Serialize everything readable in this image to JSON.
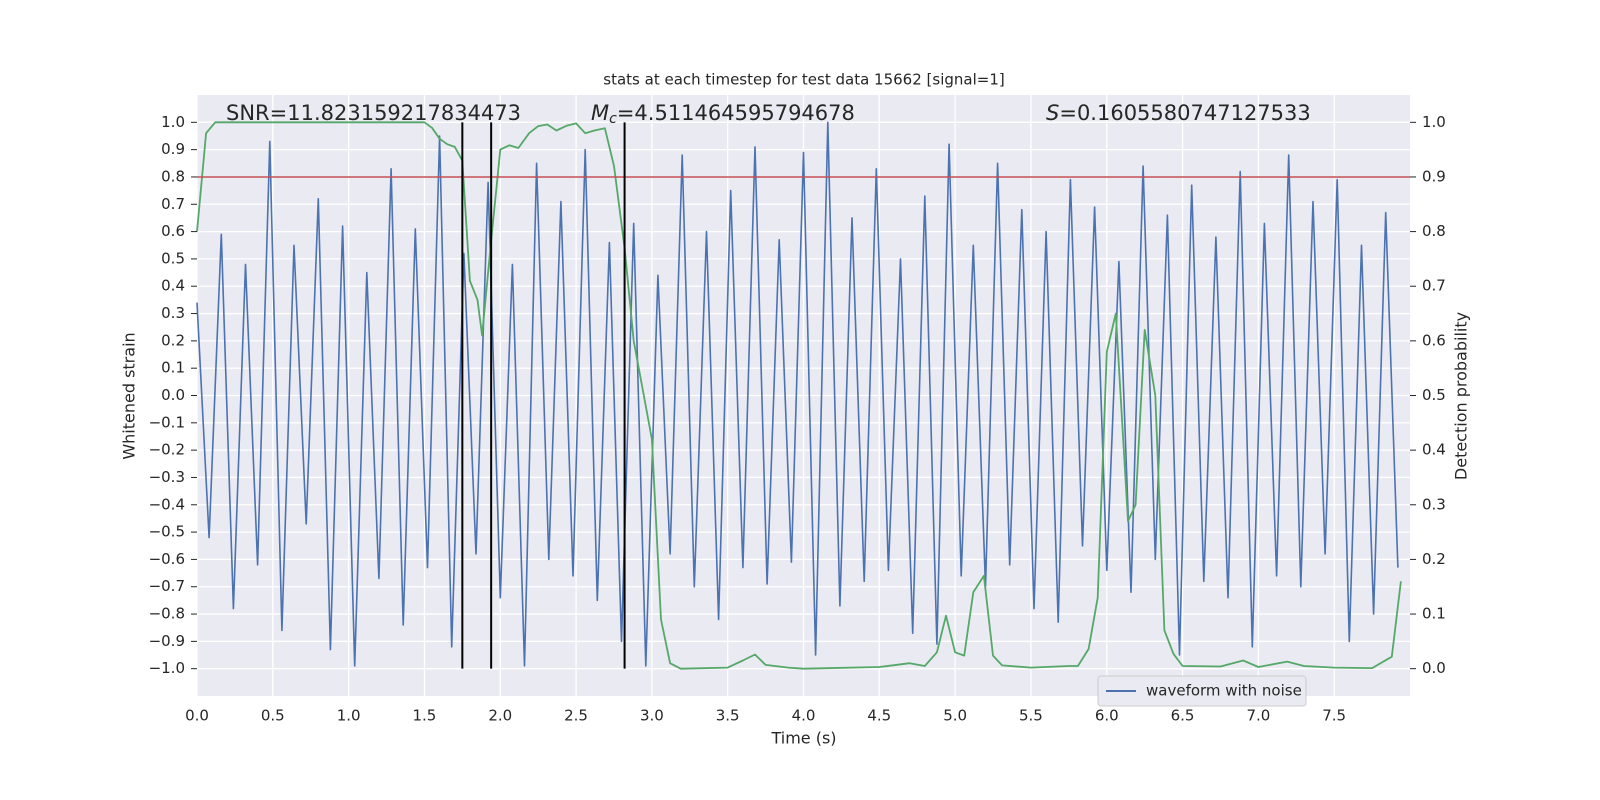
{
  "chart_data": {
    "type": "line",
    "title": "stats at each timestep for test data 15662 [signal=1]",
    "xlabel": "Time (s)",
    "ylabel": "Whitened strain",
    "y2label": "Detection probability",
    "annotations": [
      {
        "text": "SNR=11.823159217834473"
      },
      {
        "symbol": "M",
        "subscript": "c",
        "text": "=4.511464595794678"
      },
      {
        "symbol": "S",
        "text": "=0.1605580747127533"
      }
    ],
    "xlim": [
      0,
      8
    ],
    "ylim": [
      -1.1,
      1.1
    ],
    "y2lim": [
      -0.05,
      1.05
    ],
    "xticks": [
      {
        "value": 0,
        "label": "0.0"
      },
      {
        "value": 0.5,
        "label": "0.5"
      },
      {
        "value": 1,
        "label": "1.0"
      },
      {
        "value": 1.5,
        "label": "1.5"
      },
      {
        "value": 2,
        "label": "2.0"
      },
      {
        "value": 2.5,
        "label": "2.5"
      },
      {
        "value": 3,
        "label": "3.0"
      },
      {
        "value": 3.5,
        "label": "3.5"
      },
      {
        "value": 4,
        "label": "4.0"
      },
      {
        "value": 4.5,
        "label": "4.5"
      },
      {
        "value": 5,
        "label": "5.0"
      },
      {
        "value": 5.5,
        "label": "5.5"
      },
      {
        "value": 6,
        "label": "6.0"
      },
      {
        "value": 6.5,
        "label": "6.5"
      },
      {
        "value": 7,
        "label": "7.0"
      },
      {
        "value": 7.5,
        "label": "7.5"
      }
    ],
    "yticks": [
      {
        "value": -1,
        "label": "−1.0"
      },
      {
        "value": -0.9,
        "label": "−0.9"
      },
      {
        "value": -0.8,
        "label": "−0.8"
      },
      {
        "value": -0.7,
        "label": "−0.7"
      },
      {
        "value": -0.6,
        "label": "−0.6"
      },
      {
        "value": -0.5,
        "label": "−0.5"
      },
      {
        "value": -0.4,
        "label": "−0.4"
      },
      {
        "value": -0.3,
        "label": "−0.3"
      },
      {
        "value": -0.2,
        "label": "−0.2"
      },
      {
        "value": -0.1,
        "label": "−0.1"
      },
      {
        "value": 0,
        "label": "0.0"
      },
      {
        "value": 0.1,
        "label": "0.1"
      },
      {
        "value": 0.2,
        "label": "0.2"
      },
      {
        "value": 0.3,
        "label": "0.3"
      },
      {
        "value": 0.4,
        "label": "0.4"
      },
      {
        "value": 0.5,
        "label": "0.5"
      },
      {
        "value": 0.6,
        "label": "0.6"
      },
      {
        "value": 0.7,
        "label": "0.7"
      },
      {
        "value": 0.8,
        "label": "0.8"
      },
      {
        "value": 0.9,
        "label": "0.9"
      },
      {
        "value": 1,
        "label": "1.0"
      }
    ],
    "y2ticks": [
      {
        "value": 0,
        "label": "0.0"
      },
      {
        "value": 0.1,
        "label": "0.1"
      },
      {
        "value": 0.2,
        "label": "0.2"
      },
      {
        "value": 0.3,
        "label": "0.3"
      },
      {
        "value": 0.4,
        "label": "0.4"
      },
      {
        "value": 0.5,
        "label": "0.5"
      },
      {
        "value": 0.6,
        "label": "0.6"
      },
      {
        "value": 0.7,
        "label": "0.7"
      },
      {
        "value": 0.8,
        "label": "0.8"
      },
      {
        "value": 0.9,
        "label": "0.9"
      },
      {
        "value": 1,
        "label": "1.0"
      }
    ],
    "grid": true,
    "legend": "lower right",
    "series": [
      {
        "name": "waveform with noise",
        "color": "#4c72b0",
        "axis": "y",
        "x": [
          0.0,
          0.08,
          0.16,
          0.24,
          0.32,
          0.4,
          0.48,
          0.56,
          0.64,
          0.72,
          0.8,
          0.88,
          0.96,
          1.04,
          1.12,
          1.2,
          1.28,
          1.36,
          1.44,
          1.52,
          1.6,
          1.68,
          1.76,
          1.84,
          1.92,
          2.0,
          2.08,
          2.16,
          2.24,
          2.32,
          2.4,
          2.48,
          2.56,
          2.64,
          2.72,
          2.8,
          2.88,
          2.96,
          3.04,
          3.12,
          3.2,
          3.28,
          3.36,
          3.44,
          3.52,
          3.6,
          3.68,
          3.76,
          3.84,
          3.92,
          4.0,
          4.08,
          4.16,
          4.24,
          4.32,
          4.4,
          4.48,
          4.56,
          4.64,
          4.72,
          4.8,
          4.88,
          4.96,
          5.04,
          5.12,
          5.2,
          5.28,
          5.36,
          5.44,
          5.52,
          5.6,
          5.68,
          5.76,
          5.84,
          5.92,
          6.0,
          6.08,
          6.16,
          6.24,
          6.32,
          6.4,
          6.48,
          6.56,
          6.64,
          6.72,
          6.8,
          6.88,
          6.96,
          7.04,
          7.12,
          7.2,
          7.28,
          7.36,
          7.44,
          7.52,
          7.6,
          7.68,
          7.76,
          7.84,
          7.92
        ],
        "values": [
          0.34,
          -0.52,
          0.59,
          -0.78,
          0.48,
          -0.62,
          0.93,
          -0.86,
          0.55,
          -0.47,
          0.72,
          -0.93,
          0.62,
          -0.99,
          0.45,
          -0.67,
          0.83,
          -0.84,
          0.61,
          -0.63,
          0.95,
          -0.92,
          0.52,
          -0.58,
          0.78,
          -0.74,
          0.48,
          -0.99,
          0.85,
          -0.6,
          0.71,
          -0.66,
          0.9,
          -0.75,
          0.56,
          -0.9,
          0.63,
          -0.99,
          0.44,
          -0.58,
          0.88,
          -0.7,
          0.6,
          -0.82,
          0.75,
          -0.63,
          0.91,
          -0.69,
          0.57,
          -0.61,
          0.89,
          -0.95,
          1.0,
          -0.77,
          0.65,
          -0.68,
          0.83,
          -0.64,
          0.5,
          -0.87,
          0.73,
          -0.91,
          0.92,
          -0.66,
          0.55,
          -0.7,
          0.85,
          -0.62,
          0.68,
          -0.78,
          0.6,
          -0.83,
          0.79,
          -0.55,
          0.69,
          -0.64,
          0.49,
          -0.72,
          0.84,
          -0.6,
          0.66,
          -0.95,
          0.77,
          -0.68,
          0.58,
          -0.74,
          0.82,
          -0.92,
          0.63,
          -0.66,
          0.88,
          -0.7,
          0.71,
          -0.58,
          0.79,
          -0.9,
          0.55,
          -0.8,
          0.67,
          -0.63
        ]
      },
      {
        "color": "#55a868",
        "axis": "y2",
        "x": [
          0,
          0.06,
          0.12,
          0.25,
          0.5,
          0.75,
          1.0,
          1.25,
          1.5,
          1.55,
          1.6,
          1.65,
          1.7,
          1.75,
          1.8,
          1.85,
          1.88,
          1.94,
          2.0,
          2.06,
          2.12,
          2.19,
          2.25,
          2.31,
          2.37,
          2.44,
          2.5,
          2.56,
          2.62,
          2.69,
          2.75,
          2.82,
          2.88,
          2.94,
          3.0,
          3.06,
          3.12,
          3.19,
          3.5,
          3.6,
          3.68,
          3.75,
          3.9,
          4.0,
          4.5,
          4.7,
          4.8,
          4.88,
          4.94,
          5.0,
          5.06,
          5.12,
          5.19,
          5.25,
          5.31,
          5.5,
          5.75,
          5.81,
          5.88,
          5.94,
          6.0,
          6.06,
          6.14,
          6.19,
          6.25,
          6.32,
          6.38,
          6.44,
          6.5,
          6.75,
          6.9,
          7.0,
          7.19,
          7.3,
          7.5,
          7.75,
          7.88,
          7.94
        ],
        "values": [
          0.8,
          0.98,
          1.0,
          1.0,
          1.0,
          1.0,
          1.0,
          1.0,
          1.0,
          0.99,
          0.97,
          0.96,
          0.955,
          0.93,
          0.71,
          0.675,
          0.61,
          0.785,
          0.95,
          0.958,
          0.953,
          0.98,
          0.993,
          0.996,
          0.985,
          0.994,
          0.998,
          0.98,
          0.985,
          0.989,
          0.92,
          0.77,
          0.6,
          0.51,
          0.42,
          0.09,
          0.01,
          0.0,
          0.002,
          0.015,
          0.026,
          0.007,
          0.002,
          0.0,
          0.003,
          0.01,
          0.005,
          0.03,
          0.097,
          0.03,
          0.024,
          0.14,
          0.17,
          0.024,
          0.006,
          0.002,
          0.005,
          0.005,
          0.036,
          0.13,
          0.58,
          0.65,
          0.27,
          0.3,
          0.62,
          0.5,
          0.07,
          0.027,
          0.005,
          0.004,
          0.015,
          0.003,
          0.013,
          0.005,
          0.002,
          0.001,
          0.022,
          0.16
        ]
      }
    ],
    "hline": {
      "y": 0.8,
      "color": "#c44e52"
    },
    "vlines": {
      "x": [
        1.75,
        1.94,
        2.82
      ],
      "ymin": -1,
      "ymax": 1,
      "color": "#000000"
    }
  }
}
